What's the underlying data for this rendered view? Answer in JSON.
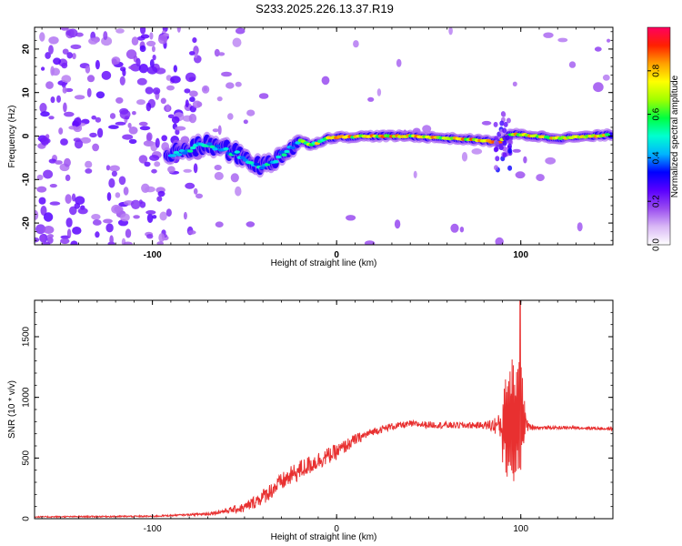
{
  "title": "S233.2025.226.13.37.R19",
  "chart_data": [
    {
      "type": "heatmap",
      "xlabel": "Height of straight line (km)",
      "ylabel": "Frequency (Hz)",
      "xlim": [
        -164,
        150
      ],
      "ylim": [
        -25,
        25
      ],
      "x_ticks": [
        -100,
        0,
        100
      ],
      "y_ticks": [
        20,
        10,
        0,
        -10,
        -20
      ],
      "ridge_x": [
        -90,
        -80,
        -70,
        -60,
        -50,
        -45,
        -40,
        -35,
        -30,
        -25,
        -20,
        -15,
        -10,
        -5,
        0,
        20,
        40,
        60,
        80,
        88,
        95,
        100,
        120,
        140,
        148
      ],
      "ridge_freq": [
        -4,
        -3,
        -2,
        -3,
        -5,
        -6,
        -7,
        -6,
        -4,
        -3,
        -1,
        -2,
        -1.5,
        -0.5,
        -0.3,
        0,
        0,
        -0.5,
        -1,
        -1.5,
        0.5,
        0.3,
        -0.5,
        0,
        0.3
      ],
      "colorbar": {
        "label": "Normalized spectral amplitude",
        "range": [
          0.0,
          1.0
        ],
        "ticks": [
          "0.0",
          "0.2",
          "0.4",
          "0.6",
          "0.8"
        ],
        "tick_values": [
          0.0,
          0.2,
          0.4,
          0.6,
          0.8
        ],
        "colors": [
          "#ffffff",
          "#d9b8f5",
          "#9a4cf0",
          "#5a00ff",
          "#0000ff",
          "#00b4ff",
          "#00ffd0",
          "#00ff40",
          "#a0ff00",
          "#ffff00",
          "#ffa000",
          "#ff2000",
          "#ff0060"
        ]
      }
    },
    {
      "type": "line",
      "xlabel": "Height of straight line (km)",
      "ylabel": "SNR (10 * v/v)",
      "xlim": [
        -164,
        150
      ],
      "ylim": [
        0,
        1800
      ],
      "x_ticks": [
        -100,
        0,
        100
      ],
      "y_ticks": [
        0,
        500,
        1000,
        1500
      ],
      "color": "#e83030",
      "trend_x": [
        -164,
        -100,
        -70,
        -50,
        -40,
        -30,
        -20,
        -10,
        0,
        10,
        20,
        30,
        40,
        60,
        80,
        88,
        92,
        96,
        100,
        104,
        110,
        130,
        150
      ],
      "trend_y": [
        15,
        20,
        40,
        90,
        180,
        300,
        400,
        480,
        550,
        650,
        720,
        760,
        780,
        770,
        770,
        770,
        780,
        790,
        850,
        760,
        750,
        750,
        740
      ],
      "noise_x": [
        -164,
        -80,
        -60,
        -40,
        -20,
        0,
        20,
        40,
        80,
        88,
        92,
        96,
        100,
        104,
        110,
        150
      ],
      "noise_amp": [
        10,
        14,
        40,
        130,
        170,
        130,
        60,
        55,
        55,
        180,
        500,
        620,
        650,
        60,
        25,
        25
      ]
    }
  ]
}
